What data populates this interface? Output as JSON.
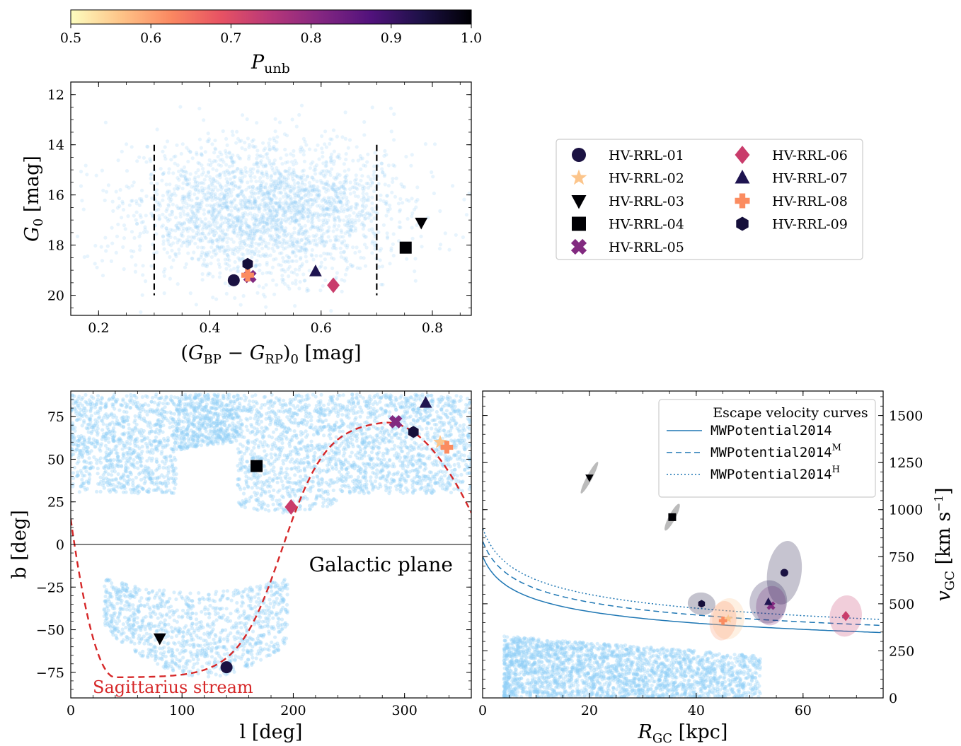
{
  "colorbar": {
    "label": "P",
    "label_sub": "unb",
    "ticks": [
      "0.5",
      "0.6",
      "0.7",
      "0.8",
      "0.9",
      "1.0"
    ],
    "range": [
      0.5,
      1.0
    ],
    "colormap": [
      "#fcfdbf",
      "#fec488",
      "#fb8861",
      "#e75263",
      "#b73779",
      "#832681",
      "#51127c",
      "#1d1147",
      "#000004"
    ]
  },
  "legend": {
    "entries": [
      {
        "name": "HV-RRL-01",
        "marker": "circle",
        "color": "#1b1242"
      },
      {
        "name": "HV-RRL-02",
        "marker": "star",
        "color": "#fcc58b"
      },
      {
        "name": "HV-RRL-03",
        "marker": "triangle-down",
        "color": "#000004"
      },
      {
        "name": "HV-RRL-04",
        "marker": "square",
        "color": "#000004"
      },
      {
        "name": "HV-RRL-05",
        "marker": "x",
        "color": "#822a80"
      },
      {
        "name": "HV-RRL-06",
        "marker": "diamond",
        "color": "#c93c6b"
      },
      {
        "name": "HV-RRL-07",
        "marker": "triangle-up",
        "color": "#1e1450"
      },
      {
        "name": "HV-RRL-08",
        "marker": "plus",
        "color": "#fb8c60"
      },
      {
        "name": "HV-RRL-09",
        "marker": "hexagon",
        "color": "#150f3a"
      }
    ]
  },
  "chart_data": [
    {
      "type": "scatter",
      "panel": "cmd",
      "xlabel": "(G_BP − G_RP)_0 [mag]",
      "ylabel": "G_0 [mag]",
      "xlim": [
        0.15,
        0.87
      ],
      "ylim": [
        20.8,
        11.5
      ],
      "xticks": [
        "0.2",
        "0.4",
        "0.6",
        "0.8"
      ],
      "yticks": [
        "12",
        "14",
        "16",
        "18",
        "20"
      ],
      "cuts": [
        {
          "x": 0.3,
          "y": [
            14,
            20
          ]
        },
        {
          "x": 0.7,
          "y": [
            14,
            20
          ]
        }
      ],
      "background_color": "#90cdf6",
      "points": [
        {
          "name": "HV-RRL-01",
          "x": 0.443,
          "y": 19.4
        },
        {
          "name": "HV-RRL-02",
          "x": 0.47,
          "y": 19.2
        },
        {
          "name": "HV-RRL-03",
          "x": 0.78,
          "y": 17.1
        },
        {
          "name": "HV-RRL-04",
          "x": 0.752,
          "y": 18.1
        },
        {
          "name": "HV-RRL-05",
          "x": 0.472,
          "y": 19.25
        },
        {
          "name": "HV-RRL-06",
          "x": 0.622,
          "y": 19.6
        },
        {
          "name": "HV-RRL-07",
          "x": 0.59,
          "y": 19.05
        },
        {
          "name": "HV-RRL-08",
          "x": 0.468,
          "y": 19.2
        },
        {
          "name": "HV-RRL-09",
          "x": 0.468,
          "y": 18.75
        }
      ]
    },
    {
      "type": "scatter",
      "panel": "sky",
      "xlabel": "l [deg]",
      "ylabel": "b [deg]",
      "xlim": [
        0,
        360
      ],
      "ylim": [
        -90,
        90
      ],
      "xticks": [
        "0",
        "100",
        "200",
        "300"
      ],
      "yticks": [
        "75",
        "50",
        "25",
        "0",
        "−25",
        "−50",
        "−75"
      ],
      "plane_label": "Galactic plane",
      "stream_label": "Sagittarius stream",
      "stream_color": "#d62728",
      "background_color": "#90cdf6",
      "points": [
        {
          "name": "HV-RRL-01",
          "x": 140,
          "y": -72
        },
        {
          "name": "HV-RRL-02",
          "x": 332,
          "y": 60
        },
        {
          "name": "HV-RRL-03",
          "x": 80,
          "y": -55
        },
        {
          "name": "HV-RRL-04",
          "x": 167,
          "y": 46
        },
        {
          "name": "HV-RRL-05",
          "x": 292,
          "y": 72
        },
        {
          "name": "HV-RRL-06",
          "x": 198,
          "y": 22
        },
        {
          "name": "HV-RRL-07",
          "x": 319,
          "y": 83
        },
        {
          "name": "HV-RRL-08",
          "x": 338,
          "y": 57
        },
        {
          "name": "HV-RRL-09",
          "x": 308,
          "y": 66
        }
      ]
    },
    {
      "type": "scatter",
      "panel": "velocity",
      "xlabel": "R_GC [kpc]",
      "ylabel": "v_GC [km s^-1]",
      "xlim": [
        0,
        75
      ],
      "ylim": [
        0,
        1630
      ],
      "xticks": [
        "0",
        "20",
        "40",
        "60"
      ],
      "yticks": [
        "0",
        "250",
        "500",
        "750",
        "1000",
        "1250",
        "1500"
      ],
      "legend_title": "Escape velocity curves",
      "curve_color": "#1f77b4",
      "series": [
        {
          "name": "MWPotential2014",
          "sup": "",
          "style": "solid",
          "v_at_r10": 550,
          "slope": 0.225
        },
        {
          "name": "MWPotential2014",
          "sup": "M",
          "style": "dashed",
          "v_at_r10": 610,
          "slope": 0.225
        },
        {
          "name": "MWPotential2014",
          "sup": "H",
          "style": "dotted",
          "v_at_r10": 660,
          "slope": 0.225
        }
      ],
      "background_color": "#90cdf6",
      "points": [
        {
          "name": "HV-RRL-01",
          "x": 56.5,
          "y": 665,
          "err_x": 3.2,
          "err_y": 170
        },
        {
          "name": "HV-RRL-02",
          "x": 46,
          "y": 420,
          "err_x": 3.0,
          "err_y": 110
        },
        {
          "name": "HV-RRL-03",
          "x": 20,
          "y": 1170,
          "err_x": 1.5,
          "err_y": 95
        },
        {
          "name": "HV-RRL-04",
          "x": 35.5,
          "y": 960,
          "err_x": 1.8,
          "err_y": 80
        },
        {
          "name": "HV-RRL-05",
          "x": 54,
          "y": 490,
          "err_x": 2.8,
          "err_y": 105
        },
        {
          "name": "HV-RRL-06",
          "x": 68,
          "y": 435,
          "err_x": 3.0,
          "err_y": 110
        },
        {
          "name": "HV-RRL-07",
          "x": 53.5,
          "y": 510,
          "err_x": 3.5,
          "err_y": 115
        },
        {
          "name": "HV-RRL-08",
          "x": 45,
          "y": 410,
          "err_x": 2.5,
          "err_y": 105
        },
        {
          "name": "HV-RRL-09",
          "x": 41,
          "y": 500,
          "err_x": 2.6,
          "err_y": 60
        }
      ]
    }
  ]
}
